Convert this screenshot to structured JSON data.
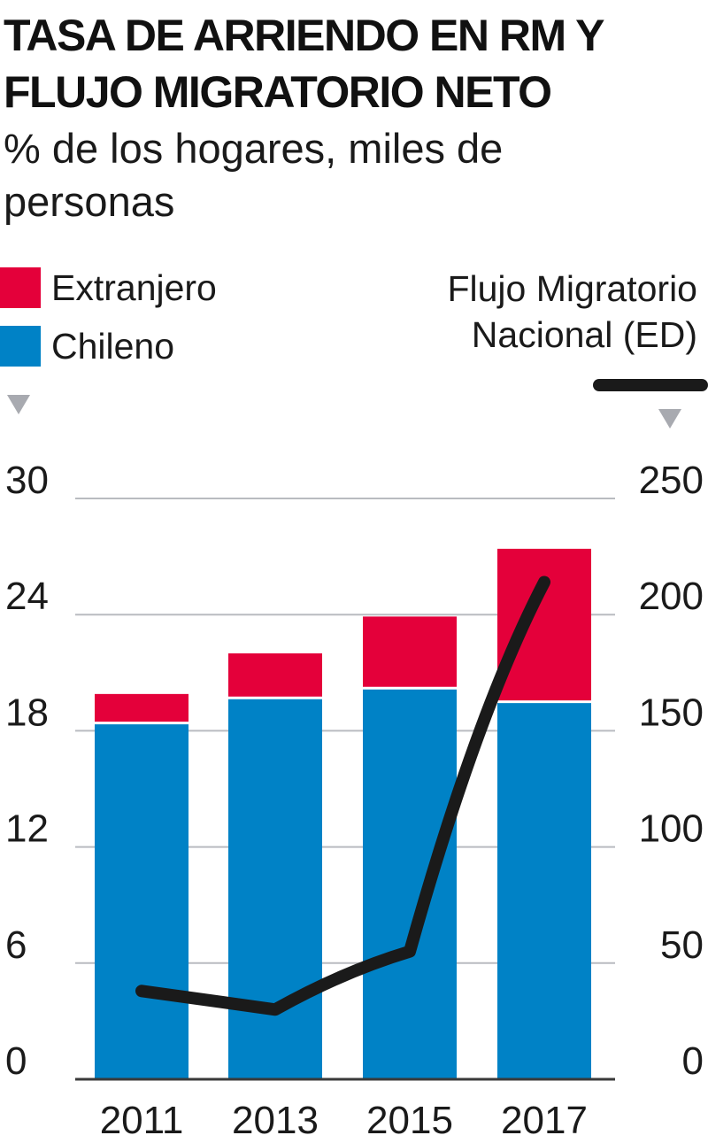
{
  "header": {
    "title_line1": "TASA DE ARRIENDO EN RM Y",
    "title_line2": "FLUJO MIGRATORIO NETO",
    "subtitle_line1": "% de los hogares, miles de",
    "subtitle_line2": "personas"
  },
  "legend": {
    "bar_series": [
      {
        "name": "Extranjero",
        "color": "#e4003a"
      },
      {
        "name": "Chileno",
        "color": "#0082c6"
      }
    ],
    "line_label_line1": "Flujo Migratorio",
    "line_label_line2": "Nacional (ED)",
    "line_color": "#1a1a1a",
    "marker_color": "#a8aab0"
  },
  "chart_data": {
    "type": "bar",
    "stacked": true,
    "categories": [
      "2011",
      "2013",
      "2015",
      "2017"
    ],
    "series": [
      {
        "name": "Chileno",
        "color": "#0082c6",
        "values": [
          18.4,
          19.7,
          20.2,
          19.5
        ]
      },
      {
        "name": "Extranjero",
        "color": "#e4003a",
        "values": [
          1.5,
          2.3,
          3.7,
          7.9
        ]
      }
    ],
    "line_series": {
      "name": "Flujo Migratorio Nacional (ED)",
      "axis": "right",
      "values": [
        38,
        30,
        55,
        214
      ]
    },
    "left_axis": {
      "ylim": [
        0,
        30
      ],
      "ticks": [
        "0",
        "6",
        "12",
        "18",
        "24",
        "30"
      ]
    },
    "right_axis": {
      "ylim": [
        0,
        250
      ],
      "ticks": [
        "0",
        "50",
        "100",
        "150",
        "200",
        "250"
      ]
    },
    "grid": true,
    "legend_placement": "top"
  }
}
